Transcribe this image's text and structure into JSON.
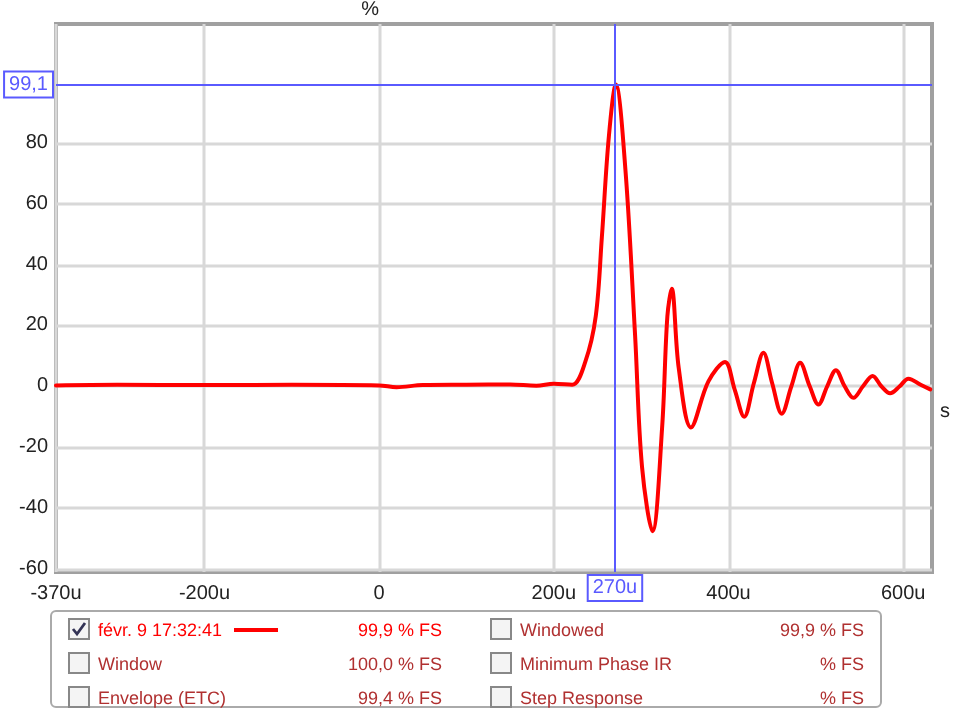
{
  "chart_data": {
    "type": "line",
    "ylabel": "%",
    "xlabel": "s",
    "xlim": [
      -370,
      633
    ],
    "ylim": [
      -61,
      119
    ],
    "xticks": [
      {
        "value": -370,
        "label": "-370u"
      },
      {
        "value": -200,
        "label": "-200u"
      },
      0,
      {
        "value": 200,
        "label": "200u"
      },
      {
        "value": 400,
        "label": "400u"
      },
      {
        "value": 600,
        "label": "600u"
      }
    ],
    "yticks": [
      -60,
      -40,
      -20,
      0,
      20,
      40,
      60,
      80
    ],
    "grid": true,
    "marker": "none",
    "line_style": "solid",
    "legend": "bottom",
    "series": [
      {
        "name": "févr. 9 17:32:41",
        "color": "#ff0000",
        "x": [
          -370,
          -300,
          -200,
          -100,
          0,
          20,
          50,
          100,
          150,
          180,
          200,
          221,
          236,
          248,
          255,
          263,
          271,
          282,
          293,
          301,
          313,
          324,
          330,
          335,
          343,
          357,
          377,
          396,
          407,
          418,
          429,
          440,
          450,
          461,
          472,
          482,
          493,
          503,
          513,
          523,
          533,
          543,
          554,
          565,
          575,
          585,
          596,
          606,
          620,
          631
        ],
        "values": [
          0.3,
          0.5,
          0.4,
          0.5,
          0.3,
          -0.3,
          0.4,
          0.5,
          0.6,
          0.2,
          0.8,
          0.5,
          8,
          23,
          49,
          82,
          99.1,
          71,
          17,
          -26.5,
          -47.6,
          -13.5,
          23,
          32,
          6,
          -13.5,
          1.6,
          8,
          -1,
          -10,
          1,
          11,
          1,
          -9,
          0,
          7.7,
          0,
          -6,
          0,
          5.3,
          0,
          -3.8,
          0,
          3.4,
          0,
          -2.3,
          0,
          2.5,
          0.5,
          -1
        ]
      }
    ],
    "ref_lines": [
      {
        "axis": "y",
        "value": 99.1,
        "label": "99,1",
        "color": "#5a5aff"
      },
      {
        "axis": "x",
        "value": 270,
        "label": "270u",
        "color": "#5a5aff"
      }
    ],
    "annotations": [
      "99,9 % FS",
      "Windowed",
      "99,9 % FS",
      "Window",
      "100,0 % FS",
      "Minimum Phase IR",
      "% FS",
      "Envelope (ETC)",
      "99,4 % FS",
      "Step Response",
      "% FS"
    ]
  }
}
